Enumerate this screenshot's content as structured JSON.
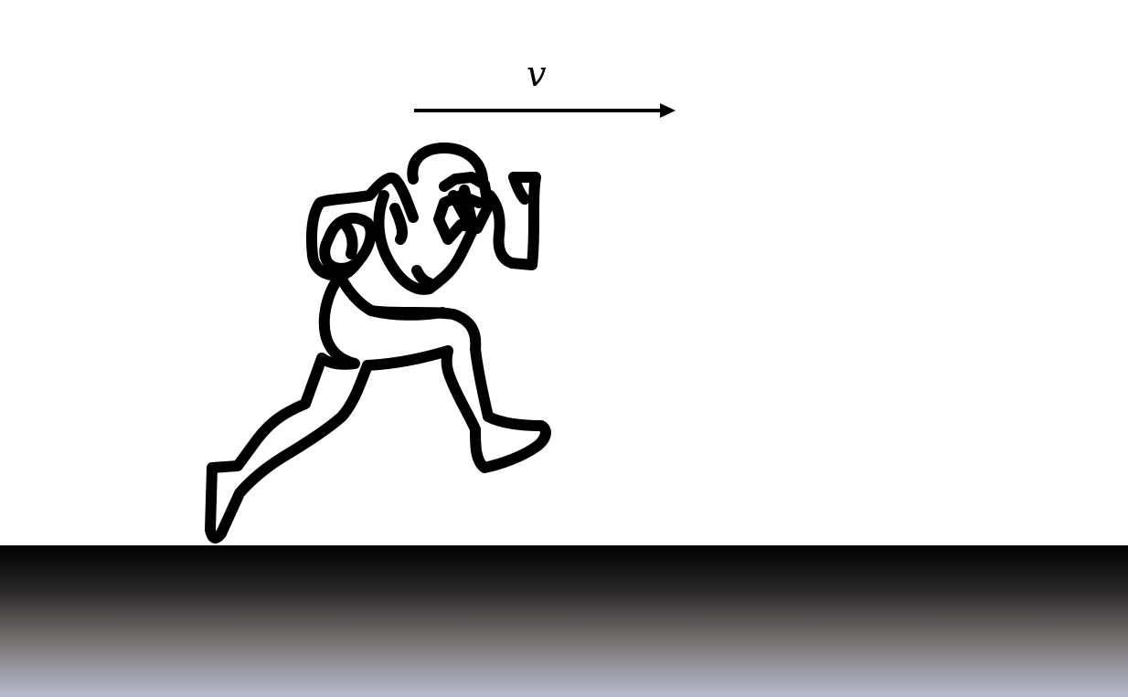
{
  "velocity": {
    "label": "v"
  }
}
